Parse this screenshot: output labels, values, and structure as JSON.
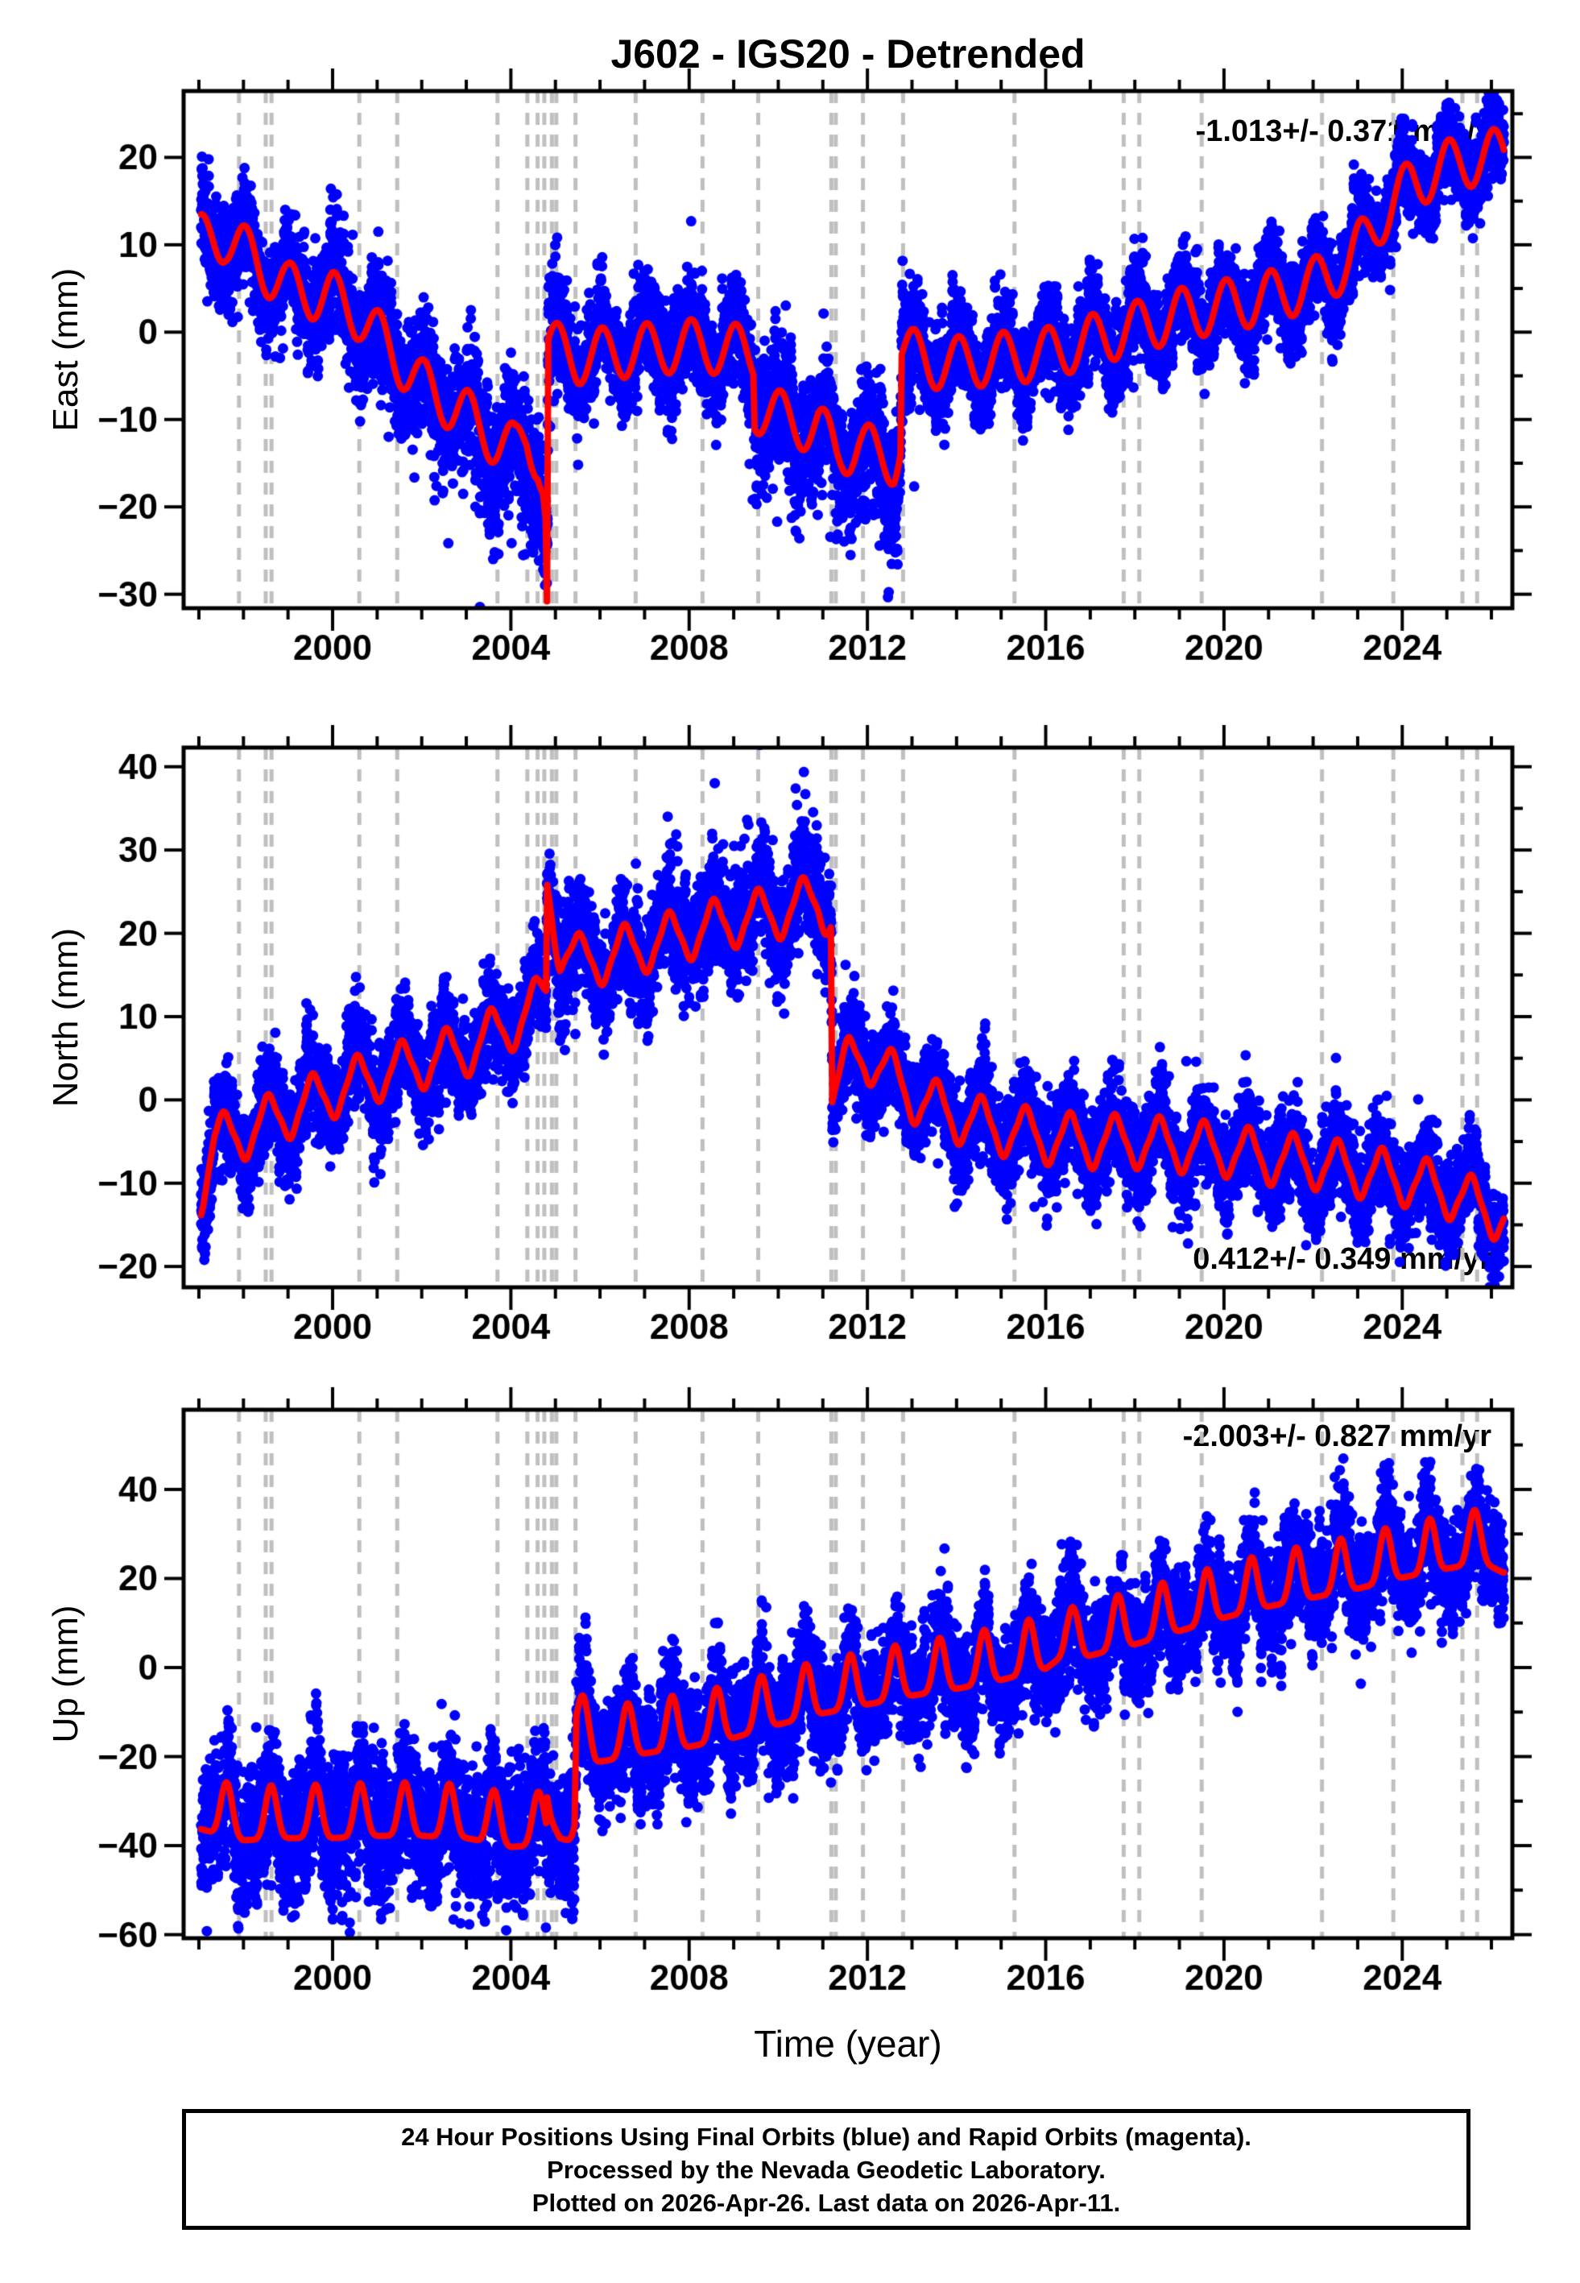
{
  "title": "J602 - IGS20 - Detrended",
  "colors": {
    "points": "#0000ff",
    "rapid_points": "#ff00ff",
    "model_line": "#ff0000",
    "event_lines": "#bfbfbf",
    "frame": "#000000"
  },
  "caption": {
    "lines": [
      "24 Hour Positions Using Final Orbits (blue) and Rapid Orbits (magenta).",
      "Processed by the Nevada Geodetic Laboratory.",
      "Plotted on 2026-Apr-26. Last data on 2026-Apr-11."
    ]
  },
  "chart_data": {
    "type": "scatter",
    "title": "J602 - IGS20 - Detrended",
    "x": {
      "label": "Time (year)",
      "range": [
        1996.66,
        2026.47
      ],
      "data_span": [
        1997.05,
        2026.28
      ],
      "major_ticks": [
        2000,
        2004,
        2008,
        2012,
        2016,
        2020,
        2024
      ],
      "minor_step": 1
    },
    "event_line_years": [
      1997.9,
      1998.5,
      1998.63,
      2000.6,
      2001.45,
      2003.7,
      2004.37,
      2004.6,
      2004.75,
      2004.92,
      2005.02,
      2005.45,
      2006.8,
      2008.3,
      2009.55,
      2011.19,
      2011.29,
      2011.9,
      2012.8,
      2015.3,
      2017.75,
      2018.1,
      2019.5,
      2022.2,
      2023.8,
      2025.35,
      2025.68
    ],
    "panels": [
      {
        "id": "east",
        "ylabel": "East (mm)",
        "ylim": [
          -31.6,
          27.6
        ],
        "yticks": [
          -30,
          -20,
          -10,
          0,
          10,
          20
        ],
        "ytick_minor_step": 5,
        "rate_label": "-1.013+/- 0.371 mm/yr",
        "rate_position": "top-right",
        "trend_keypoints": [
          [
            1997.05,
            10.5
          ],
          [
            1997.6,
            11.0
          ],
          [
            1998.2,
            8.5
          ],
          [
            1999.0,
            5.0
          ],
          [
            2000.0,
            4.0
          ],
          [
            2000.6,
            2.0
          ],
          [
            2001.2,
            -1.5
          ],
          [
            2002.0,
            -6.0
          ],
          [
            2003.0,
            -9.5
          ],
          [
            2003.7,
            -12.5
          ],
          [
            2004.1,
            -13.5
          ],
          [
            2004.35,
            -12.0
          ],
          [
            2004.6,
            -14.0
          ],
          [
            2004.72,
            -17.0
          ],
          [
            2004.78,
            -21.0
          ],
          [
            2004.81,
            -31.0
          ],
          [
            2004.84,
            -1.5
          ],
          [
            2005.5,
            -3.0
          ],
          [
            2006.0,
            -2.5
          ],
          [
            2007.0,
            -2.0
          ],
          [
            2008.0,
            -1.5
          ],
          [
            2009.0,
            -2.0
          ],
          [
            2009.44,
            -2.5
          ],
          [
            2009.47,
            -8.5
          ],
          [
            2010.2,
            -10.0
          ],
          [
            2010.9,
            -11.0
          ],
          [
            2011.3,
            -13.5
          ],
          [
            2011.8,
            -13.0
          ],
          [
            2012.2,
            -14.0
          ],
          [
            2012.6,
            -14.5
          ],
          [
            2012.74,
            -13.0
          ],
          [
            2012.77,
            -2.0
          ],
          [
            2013.4,
            -3.5
          ],
          [
            2014.0,
            -3.5
          ],
          [
            2015.0,
            -3.0
          ],
          [
            2016.0,
            -2.5
          ],
          [
            2017.0,
            -1.0
          ],
          [
            2018.0,
            0.5
          ],
          [
            2019.0,
            2.0
          ],
          [
            2020.0,
            3.0
          ],
          [
            2021.0,
            4.0
          ],
          [
            2022.0,
            5.5
          ],
          [
            2022.8,
            8.0
          ],
          [
            2023.5,
            13.0
          ],
          [
            2024.2,
            17.0
          ],
          [
            2025.0,
            19.0
          ],
          [
            2026.28,
            20.5
          ]
        ],
        "seasonal": {
          "amplitude": 3.0,
          "peak_fraction": 0.05,
          "shape": "cos"
        },
        "noise": {
          "eras": [
            [
              1996.6,
              2000,
              3.0
            ],
            [
              2000,
              2003,
              3.3
            ],
            [
              2003,
              2005.1,
              3.6
            ],
            [
              2005.1,
              2009.3,
              2.9
            ],
            [
              2009.3,
              2013.2,
              3.6
            ],
            [
              2013.2,
              2026.5,
              2.5
            ]
          ],
          "outliers": [
            {
              "t": [
                2003.0,
                2005.05
              ],
              "p": 0.13,
              "scale": 5.0,
              "sign": -1
            },
            {
              "t": [
                2009.4,
                2013.1
              ],
              "p": 0.13,
              "scale": 5.0,
              "sign": -1
            },
            {
              "t": [
                1997.0,
                2003.0
              ],
              "p": 0.05,
              "scale": 3.5,
              "sign": -1
            }
          ]
        }
      },
      {
        "id": "north",
        "ylabel": "North (mm)",
        "ylim": [
          -22.5,
          42.3
        ],
        "yticks": [
          -20,
          -10,
          0,
          10,
          20,
          30,
          40
        ],
        "ytick_minor_step": 5,
        "rate_label": "0.412+/- 0.349 mm/yr",
        "rate_position": "bottom-right",
        "trend_keypoints": [
          [
            1997.05,
            -10.5
          ],
          [
            1997.35,
            -5.0
          ],
          [
            1998.0,
            -4.0
          ],
          [
            1999.0,
            -1.5
          ],
          [
            2000.0,
            1.0
          ],
          [
            2001.0,
            3.0
          ],
          [
            2002.0,
            4.5
          ],
          [
            2003.0,
            6.0
          ],
          [
            2004.0,
            9.0
          ],
          [
            2004.6,
            11.5
          ],
          [
            2004.79,
            13.0
          ],
          [
            2004.815,
            26.0
          ],
          [
            2005.1,
            18.5
          ],
          [
            2005.6,
            16.5
          ],
          [
            2006.0,
            17.0
          ],
          [
            2007.0,
            18.5
          ],
          [
            2008.0,
            20.0
          ],
          [
            2009.0,
            21.5
          ],
          [
            2010.0,
            22.5
          ],
          [
            2010.9,
            24.0
          ],
          [
            2011.18,
            22.5
          ],
          [
            2011.21,
            1.0
          ],
          [
            2011.6,
            4.5
          ],
          [
            2011.95,
            5.5
          ],
          [
            2012.4,
            3.5
          ],
          [
            2013.0,
            0.5
          ],
          [
            2014.0,
            -2.0
          ],
          [
            2015.0,
            -3.5
          ],
          [
            2016.0,
            -4.5
          ],
          [
            2017.0,
            -5.0
          ],
          [
            2018.0,
            -5.0
          ],
          [
            2019.0,
            -5.5
          ],
          [
            2020.0,
            -6.0
          ],
          [
            2021.0,
            -7.0
          ],
          [
            2022.0,
            -7.5
          ],
          [
            2023.0,
            -8.5
          ],
          [
            2024.0,
            -9.5
          ],
          [
            2025.0,
            -11.0
          ],
          [
            2026.28,
            -14.0
          ]
        ],
        "seasonal": {
          "amplitude": 3.3,
          "peak_fraction": 0.55,
          "shape": "peaked"
        },
        "noise": {
          "eras": [
            [
              1996.6,
              2004.6,
              2.9
            ],
            [
              2004.6,
              2011.2,
              3.3
            ],
            [
              2011.2,
              2026.5,
              2.7
            ]
          ],
          "outliers": [
            {
              "t": [
                1997.0,
                1997.3
              ],
              "p": 0.3,
              "scale": 3.0,
              "sign": -1
            },
            {
              "t": [
                2007.5,
                2011.15
              ],
              "p": 0.1,
              "scale": 4.5,
              "sign": 1
            },
            {
              "t": [
                2004.85,
                2006.0
              ],
              "p": 0.08,
              "scale": 3.5,
              "sign": 1
            },
            {
              "t": [
                2011.25,
                2026.4
              ],
              "p": 0.04,
              "scale": 3.0,
              "sign": 1
            }
          ]
        }
      },
      {
        "id": "up",
        "ylabel": "Up (mm)",
        "ylim": [
          -60.8,
          57.9
        ],
        "yticks": [
          -60,
          -40,
          -20,
          0,
          20,
          40
        ],
        "ytick_minor_step": 10,
        "rate_label": "-2.003+/- 0.827 mm/yr",
        "rate_position": "top-right",
        "trend_keypoints": [
          [
            1997.05,
            -33.0
          ],
          [
            1998.0,
            -35.5
          ],
          [
            1999.0,
            -35.0
          ],
          [
            2000.0,
            -35.0
          ],
          [
            2001.0,
            -34.5
          ],
          [
            2002.0,
            -34.5
          ],
          [
            2003.0,
            -35.0
          ],
          [
            2004.0,
            -37.0
          ],
          [
            2004.79,
            -36.5
          ],
          [
            2004.815,
            -29.5
          ],
          [
            2005.1,
            -35.0
          ],
          [
            2005.43,
            -36.0
          ],
          [
            2005.47,
            -13.5
          ],
          [
            2005.9,
            -18.0
          ],
          [
            2006.5,
            -17.0
          ],
          [
            2007.0,
            -16.0
          ],
          [
            2008.0,
            -14.5
          ],
          [
            2009.0,
            -12.5
          ],
          [
            2010.0,
            -9.5
          ],
          [
            2011.0,
            -7.0
          ],
          [
            2012.0,
            -5.0
          ],
          [
            2013.0,
            -3.0
          ],
          [
            2014.0,
            -1.5
          ],
          [
            2015.0,
            0.5
          ],
          [
            2016.0,
            3.0
          ],
          [
            2016.45,
            6.5
          ],
          [
            2016.65,
            4.5
          ],
          [
            2017.0,
            6.0
          ],
          [
            2018.0,
            8.5
          ],
          [
            2019.0,
            11.5
          ],
          [
            2020.0,
            14.5
          ],
          [
            2021.0,
            17.0
          ],
          [
            2022.0,
            19.0
          ],
          [
            2023.0,
            21.0
          ],
          [
            2024.0,
            23.5
          ],
          [
            2025.0,
            25.5
          ],
          [
            2025.8,
            27.0
          ],
          [
            2026.28,
            24.5
          ]
        ],
        "seasonal": {
          "amplitude": 6.0,
          "peak_fraction": 0.62,
          "shape": "spike"
        },
        "noise": {
          "eras": [
            [
              1996.6,
              2005.45,
              8.0
            ],
            [
              2005.45,
              2011,
              6.5
            ],
            [
              2011,
              2026.5,
              6.0
            ]
          ],
          "outliers": [
            {
              "t": [
                2016.3,
                2016.7
              ],
              "p": 0.45,
              "scale": 9.0,
              "sign": 1
            },
            {
              "t": [
                2023.3,
                2026.4
              ],
              "p": 0.06,
              "scale": 5.0,
              "sign": 1
            },
            {
              "t": [
                1997.0,
                2026.4
              ],
              "p": 0.01,
              "scale": 7.0,
              "sign": -1
            },
            {
              "t": [
                2014.0,
                2020.5
              ],
              "p": 0.02,
              "scale": 5.0,
              "sign": -1
            }
          ]
        }
      }
    ]
  }
}
